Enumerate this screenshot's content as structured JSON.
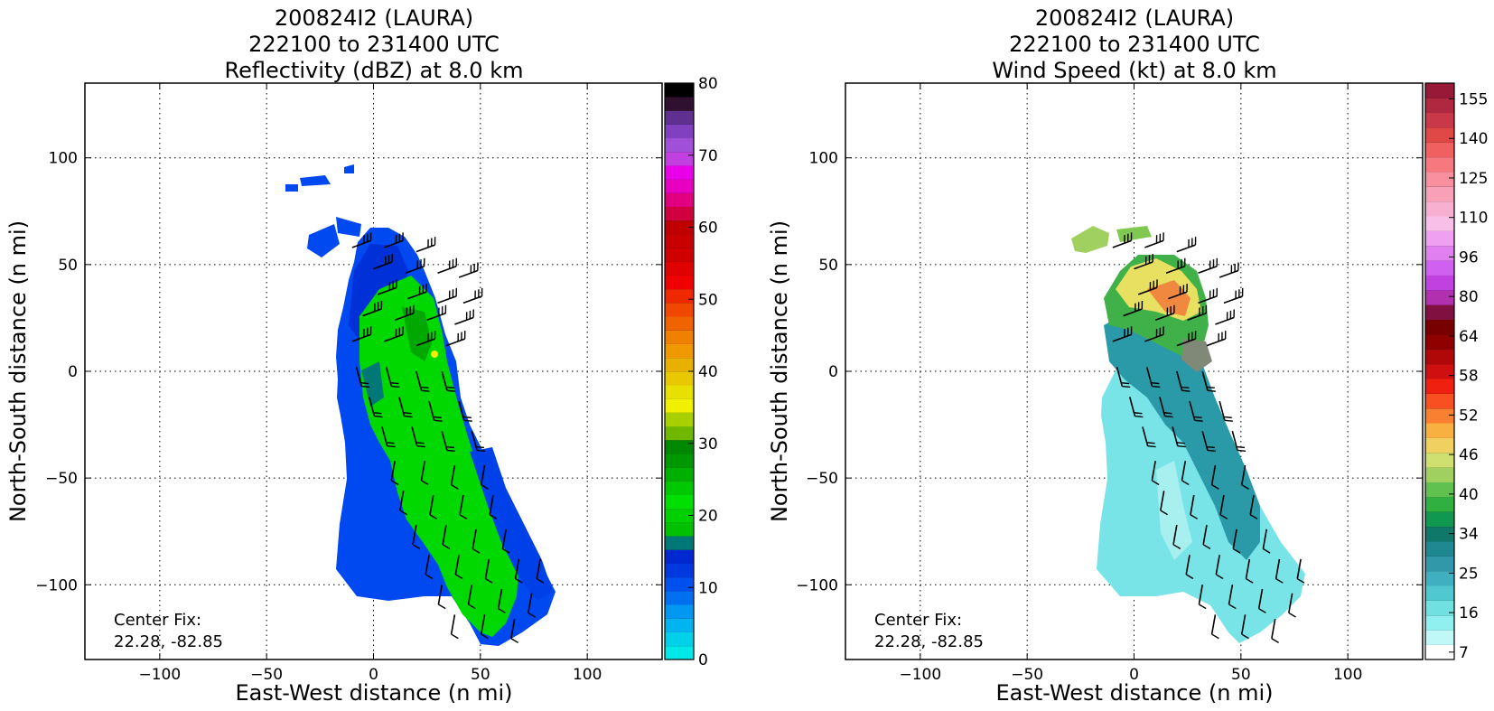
{
  "chart_data": [
    {
      "type": "heatmap",
      "title_lines": [
        "200824I2 (LAURA)",
        "222100 to 231400 UTC",
        "Reflectivity (dBZ) at 8.0 km"
      ],
      "xlabel": "East-West distance (n mi)",
      "ylabel": "North-South distance (n mi)",
      "xlim": [
        -135,
        135
      ],
      "ylim": [
        -135,
        135
      ],
      "xticks": [
        -100,
        -50,
        0,
        50,
        100
      ],
      "yticks": [
        -100,
        -50,
        0,
        50,
        100
      ],
      "grid": true,
      "annotation_lines": [
        "Center Fix:",
        "22.28, -82.85"
      ],
      "colorbar": {
        "label_values": [
          0,
          10,
          20,
          30,
          40,
          50,
          60,
          70,
          80
        ],
        "min": 0,
        "max": 80,
        "colors": [
          "#00e8e8",
          "#00d0e8",
          "#00b4f0",
          "#0098f0",
          "#0070f0",
          "#0050f0",
          "#0038e0",
          "#0028d0",
          "#007878",
          "#00c000",
          "#00d000",
          "#00e000",
          "#00c800",
          "#00b000",
          "#009800",
          "#008800",
          "#70b800",
          "#a8d000",
          "#f0f000",
          "#e8e000",
          "#e8c800",
          "#e8b000",
          "#f09800",
          "#f08000",
          "#f06400",
          "#f04800",
          "#f02800",
          "#f00000",
          "#e00000",
          "#d00000",
          "#c80000",
          "#c00000",
          "#d00040",
          "#e00080",
          "#e800c0",
          "#e800e8",
          "#c040e0",
          "#a050d8",
          "#8040c0",
          "#603090",
          "#301030",
          "#000000"
        ]
      },
      "field_values": [
        {
          "x": -40,
          "y": 87,
          "v": 12
        },
        {
          "x": -20,
          "y": 90,
          "v": 12
        },
        {
          "x": -15,
          "y": 60,
          "v": 10
        },
        {
          "x": 5,
          "y": 55,
          "v": 8
        },
        {
          "x": 0,
          "y": 30,
          "v": 14
        },
        {
          "x": 15,
          "y": 20,
          "v": 22
        },
        {
          "x": 5,
          "y": 0,
          "v": 10
        },
        {
          "x": 30,
          "y": 5,
          "v": 38
        },
        {
          "x": 20,
          "y": -30,
          "v": 22
        },
        {
          "x": 40,
          "y": -60,
          "v": 22
        },
        {
          "x": 60,
          "y": -70,
          "v": 14
        },
        {
          "x": 55,
          "y": -100,
          "v": 22
        },
        {
          "x": 75,
          "y": -105,
          "v": 12
        }
      ]
    },
    {
      "type": "heatmap",
      "title_lines": [
        "200824I2 (LAURA)",
        "222100 to 231400 UTC",
        "Wind Speed (kt) at 8.0 km"
      ],
      "xlabel": "East-West distance (n mi)",
      "ylabel": "North-South distance (n mi)",
      "xlim": [
        -135,
        135
      ],
      "ylim": [
        -135,
        135
      ],
      "xticks": [
        -100,
        -50,
        0,
        50,
        100
      ],
      "yticks": [
        -100,
        -50,
        0,
        50,
        100
      ],
      "grid": true,
      "annotation_lines": [
        "Center Fix:",
        "22.28, -82.85"
      ],
      "colorbar": {
        "labels": [
          "7",
          "16",
          "25",
          "34",
          "40",
          "46",
          "52",
          "58",
          "64",
          "80",
          "96",
          "110",
          "125",
          "140",
          "155"
        ],
        "colors": [
          "#ffffff",
          "#c0f8f8",
          "#90f0f0",
          "#70e0e0",
          "#50c8d0",
          "#40b0c0",
          "#3098a8",
          "#208890",
          "#107868",
          "#109850",
          "#30b040",
          "#60c050",
          "#a0d060",
          "#d0e070",
          "#f0d060",
          "#f8b040",
          "#f88030",
          "#f85020",
          "#f02010",
          "#d01010",
          "#b00808",
          "#900000",
          "#780000",
          "#801040",
          "#b030b0",
          "#c040e0",
          "#d060f0",
          "#e080f0",
          "#f0a0f0",
          "#f8c0e8",
          "#f8b0d0",
          "#f8a0b8",
          "#f890a0",
          "#f87880",
          "#f06060",
          "#e04848",
          "#c83848",
          "#b02840",
          "#981838"
        ]
      },
      "field_values": [
        {
          "x": -15,
          "y": 60,
          "v": 40
        },
        {
          "x": 0,
          "y": 55,
          "v": 44
        },
        {
          "x": 15,
          "y": 45,
          "v": 46
        },
        {
          "x": 20,
          "y": 30,
          "v": 52
        },
        {
          "x": 30,
          "y": 25,
          "v": 50
        },
        {
          "x": -5,
          "y": 20,
          "v": 30
        },
        {
          "x": 20,
          "y": 0,
          "v": 28
        },
        {
          "x": 15,
          "y": -20,
          "v": 16
        },
        {
          "x": 40,
          "y": -60,
          "v": 18
        },
        {
          "x": 30,
          "y": -40,
          "v": 24
        },
        {
          "x": 60,
          "y": -100,
          "v": 12
        }
      ]
    }
  ]
}
